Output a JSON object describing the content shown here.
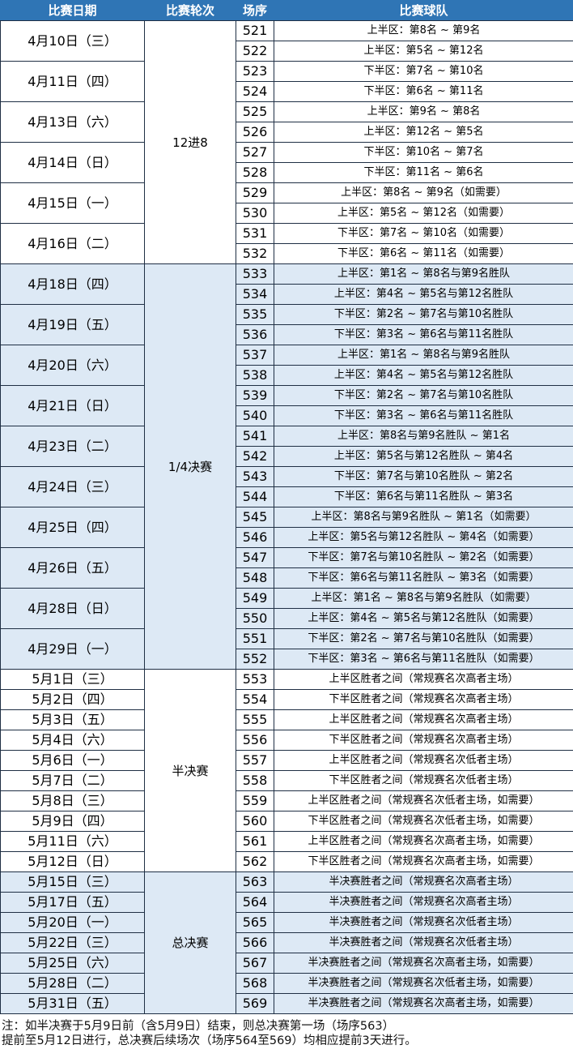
{
  "header": {
    "date": "比赛日期",
    "round": "比赛轮次",
    "num": "场序",
    "teams": "比赛球队"
  },
  "colors": {
    "header_bg": "#2f75b5",
    "alt_bg": "#dde9f5"
  },
  "groups": [
    {
      "round": "12进8",
      "shaded": false,
      "days": [
        {
          "date": "4月10日（三）",
          "games": [
            [
              "521",
              "上半区：第8名 ~ 第9名"
            ],
            [
              "522",
              "上半区：第5名 ~ 第12名"
            ]
          ]
        },
        {
          "date": "4月11日（四）",
          "games": [
            [
              "523",
              "下半区：第7名 ~ 第10名"
            ],
            [
              "524",
              "下半区：第6名 ~ 第11名"
            ]
          ]
        },
        {
          "date": "4月13日（六）",
          "games": [
            [
              "525",
              "上半区：第9名 ~ 第8名"
            ],
            [
              "526",
              "上半区：第12名 ~ 第5名"
            ]
          ]
        },
        {
          "date": "4月14日（日）",
          "games": [
            [
              "527",
              "下半区：第10名 ~ 第7名"
            ],
            [
              "528",
              "下半区：第11名 ~ 第6名"
            ]
          ]
        },
        {
          "date": "4月15日（一）",
          "games": [
            [
              "529",
              "上半区：第8名 ~ 第9名（如需要）"
            ],
            [
              "530",
              "上半区：第5名 ~ 第12名（如需要）"
            ]
          ]
        },
        {
          "date": "4月16日（二）",
          "games": [
            [
              "531",
              "下半区：第7名 ~ 第10名（如需要）"
            ],
            [
              "532",
              "下半区：第6名 ~ 第11名（如需要）"
            ]
          ]
        }
      ]
    },
    {
      "round": "1/4决赛",
      "shaded": true,
      "days": [
        {
          "date": "4月18日（四）",
          "games": [
            [
              "533",
              "上半区：第1名 ~ 第8名与第9名胜队"
            ],
            [
              "534",
              "上半区：第4名 ~ 第5名与第12名胜队"
            ]
          ]
        },
        {
          "date": "4月19日（五）",
          "games": [
            [
              "535",
              "下半区：第2名 ~ 第7名与第10名胜队"
            ],
            [
              "536",
              "下半区：第3名 ~ 第6名与第11名胜队"
            ]
          ]
        },
        {
          "date": "4月20日（六）",
          "games": [
            [
              "537",
              "上半区：第1名 ~ 第8名与第9名胜队"
            ],
            [
              "538",
              "上半区：第4名 ~ 第5名与第12名胜队"
            ]
          ]
        },
        {
          "date": "4月21日（日）",
          "games": [
            [
              "539",
              "下半区：第2名 ~ 第7名与第10名胜队"
            ],
            [
              "540",
              "下半区：第3名 ~ 第6名与第11名胜队"
            ]
          ]
        },
        {
          "date": "4月23日（二）",
          "games": [
            [
              "541",
              "上半区：第8名与第9名胜队 ~ 第1名"
            ],
            [
              "542",
              "上半区：第5名与第12名胜队 ~ 第4名"
            ]
          ]
        },
        {
          "date": "4月24日（三）",
          "games": [
            [
              "543",
              "下半区：第7名与第10名胜队 ~ 第2名"
            ],
            [
              "544",
              "下半区：第6名与第11名胜队 ~ 第3名"
            ]
          ]
        },
        {
          "date": "4月25日（四）",
          "games": [
            [
              "545",
              "上半区：第8名与第9名胜队 ~ 第1名（如需要）"
            ],
            [
              "546",
              "上半区：第5名与第12名胜队 ~ 第4名（如需要）"
            ]
          ]
        },
        {
          "date": "4月26日（五）",
          "games": [
            [
              "547",
              "下半区：第7名与第10名胜队 ~ 第2名（如需要）"
            ],
            [
              "548",
              "下半区：第6名与第11名胜队 ~ 第3名（如需要）"
            ]
          ]
        },
        {
          "date": "4月28日（日）",
          "games": [
            [
              "549",
              "上半区：第1名 ~ 第8名与第9名胜队（如需要）"
            ],
            [
              "550",
              "上半区：第4名 ~ 第5名与第12名胜队（如需要）"
            ]
          ]
        },
        {
          "date": "4月29日（一）",
          "games": [
            [
              "551",
              "下半区：第2名 ~ 第7名与第10名胜队（如需要）"
            ],
            [
              "552",
              "下半区：第3名 ~ 第6名与第11名胜队（如需要）"
            ]
          ]
        }
      ]
    },
    {
      "round": "半决赛",
      "shaded": false,
      "days": [
        {
          "date": "5月1日（三）",
          "games": [
            [
              "553",
              "上半区胜者之间（常规赛名次高者主场）"
            ]
          ]
        },
        {
          "date": "5月2日（四）",
          "games": [
            [
              "554",
              "下半区胜者之间（常规赛名次高者主场）"
            ]
          ]
        },
        {
          "date": "5月3日（五）",
          "games": [
            [
              "555",
              "上半区胜者之间（常规赛名次高者主场）"
            ]
          ]
        },
        {
          "date": "5月4日（六）",
          "games": [
            [
              "556",
              "下半区胜者之间（常规赛名次高者主场）"
            ]
          ]
        },
        {
          "date": "5月6日（一）",
          "games": [
            [
              "557",
              "上半区胜者之间（常规赛名次低者主场）"
            ]
          ]
        },
        {
          "date": "5月7日（二）",
          "games": [
            [
              "558",
              "下半区胜者之间（常规赛名次低者主场）"
            ]
          ]
        },
        {
          "date": "5月8日（三）",
          "games": [
            [
              "559",
              "上半区胜者之间（常规赛名次低者主场，如需要）"
            ]
          ]
        },
        {
          "date": "5月9日（四）",
          "games": [
            [
              "560",
              "下半区胜者之间（常规赛名次低者主场，如需要）"
            ]
          ]
        },
        {
          "date": "5月11日（六）",
          "games": [
            [
              "561",
              "上半区胜者之间（常规赛名次高者主场，如需要）"
            ]
          ]
        },
        {
          "date": "5月12日（日）",
          "games": [
            [
              "562",
              "下半区胜者之间（常规赛名次高者主场，如需要）"
            ]
          ]
        }
      ]
    },
    {
      "round": "总决赛",
      "shaded": true,
      "days": [
        {
          "date": "5月15日（三）",
          "games": [
            [
              "563",
              "半决赛胜者之间（常规赛名次高者主场）"
            ]
          ]
        },
        {
          "date": "5月17日（五）",
          "games": [
            [
              "564",
              "半决赛胜者之间（常规赛名次高者主场）"
            ]
          ]
        },
        {
          "date": "5月20日（一）",
          "games": [
            [
              "565",
              "半决赛胜者之间（常规赛名次低者主场）"
            ]
          ]
        },
        {
          "date": "5月22日（三）",
          "games": [
            [
              "566",
              "半决赛胜者之间（常规赛名次低者主场）"
            ]
          ]
        },
        {
          "date": "5月25日（六）",
          "games": [
            [
              "567",
              "半决赛胜者之间（常规赛名次高者主场，如需要）"
            ]
          ]
        },
        {
          "date": "5月28日（二）",
          "games": [
            [
              "568",
              "半决赛胜者之间（常规赛名次低者主场，如需要）"
            ]
          ]
        },
        {
          "date": "5月31日（五）",
          "games": [
            [
              "569",
              "半决赛胜者之间（常规赛名次高者主场，如需要）"
            ]
          ]
        }
      ]
    }
  ],
  "notes": [
    "注：如半决赛于5月9日前（含5月9日）结束，则总决赛第一场（场序563）",
    "提前至5月12日进行，总决赛后续场次（场序564至569）均相应提前3天进行。"
  ]
}
